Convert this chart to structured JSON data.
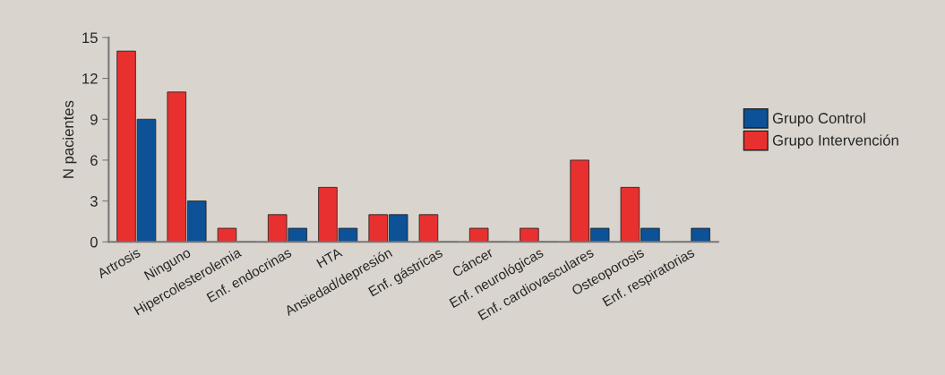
{
  "chart_data": {
    "type": "bar",
    "ylabel": "N pacientes",
    "categories": [
      "Artrosis",
      "Ninguno",
      "Hipercolesterolemia",
      "Enf. endocrinas",
      "HTA",
      "Ansiedad/depresión",
      "Enf. gástricas",
      "Cáncer",
      "Enf. neurológicas",
      "Enf. cardiovasculares",
      "Osteoporosis",
      "Enf. respiratorias"
    ],
    "series": [
      {
        "name": "Grupo Intervención",
        "color": "#e8312f",
        "values": [
          14,
          11,
          1,
          2,
          4,
          2,
          2,
          1,
          1,
          6,
          4,
          0
        ]
      },
      {
        "name": "Grupo Control",
        "color": "#0d5196",
        "values": [
          9,
          3,
          0,
          1,
          1,
          2,
          0,
          0,
          0,
          1,
          1,
          1
        ]
      }
    ],
    "ylim": [
      0,
      15
    ],
    "yticks": [
      0,
      3,
      6,
      9,
      12,
      15
    ],
    "grid": false,
    "legend": "right"
  }
}
